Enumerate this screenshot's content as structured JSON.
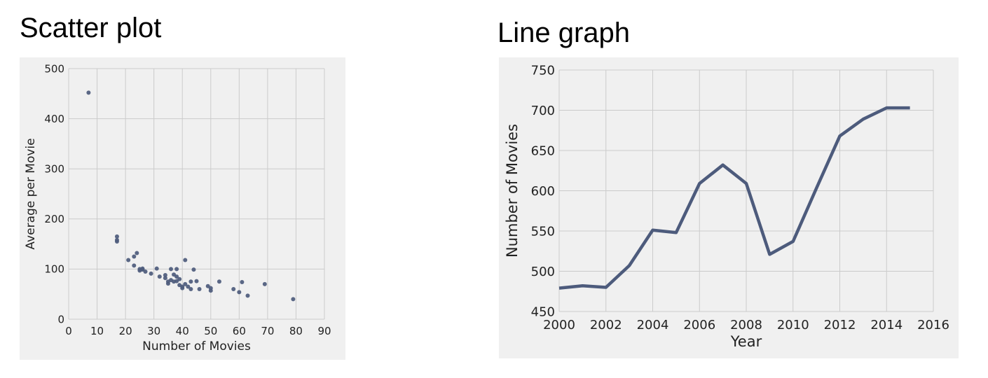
{
  "page": {
    "left_heading": "Scatter plot",
    "right_heading": "Line graph"
  },
  "colors": {
    "panel_bg": "#f0f0f0",
    "grid": "#cbcbcb",
    "series": "#4d5b7c"
  },
  "chart_data": [
    {
      "type": "scatter",
      "title": "",
      "xlabel": "Number of Movies",
      "ylabel": "Average per Movie",
      "xlim": [
        0,
        90
      ],
      "ylim": [
        0,
        500
      ],
      "xticks": [
        "0",
        "10",
        "20",
        "30",
        "40",
        "50",
        "60",
        "70",
        "80",
        "90"
      ],
      "yticks": [
        "0",
        "100",
        "200",
        "300",
        "400",
        "500"
      ],
      "grid": true,
      "points": [
        [
          7,
          452
        ],
        [
          17,
          165
        ],
        [
          17,
          158
        ],
        [
          17,
          155
        ],
        [
          21,
          118
        ],
        [
          23,
          107
        ],
        [
          23,
          125
        ],
        [
          24,
          132
        ],
        [
          25,
          100
        ],
        [
          25,
          97
        ],
        [
          26,
          101
        ],
        [
          26,
          99
        ],
        [
          27,
          95
        ],
        [
          29,
          91
        ],
        [
          31,
          101
        ],
        [
          32,
          85
        ],
        [
          34,
          88
        ],
        [
          34,
          82
        ],
        [
          35,
          75
        ],
        [
          35,
          71
        ],
        [
          36,
          100
        ],
        [
          36,
          78
        ],
        [
          37,
          75
        ],
        [
          37,
          89
        ],
        [
          38,
          100
        ],
        [
          38,
          76
        ],
        [
          38,
          85
        ],
        [
          39,
          80
        ],
        [
          39,
          68
        ],
        [
          40,
          65
        ],
        [
          40,
          62
        ],
        [
          41,
          118
        ],
        [
          41,
          70
        ],
        [
          42,
          65
        ],
        [
          43,
          60
        ],
        [
          43,
          75
        ],
        [
          44,
          99
        ],
        [
          45,
          76
        ],
        [
          46,
          60
        ],
        [
          49,
          66
        ],
        [
          50,
          62
        ],
        [
          50,
          57
        ],
        [
          53,
          75
        ],
        [
          58,
          60
        ],
        [
          60,
          54
        ],
        [
          61,
          74
        ],
        [
          63,
          47
        ],
        [
          69,
          70
        ],
        [
          79,
          40
        ]
      ]
    },
    {
      "type": "line",
      "title": "",
      "xlabel": "Year",
      "ylabel": "Number of Movies",
      "xlim": [
        2000,
        2016
      ],
      "ylim": [
        450,
        750
      ],
      "xticks": [
        "2000",
        "2002",
        "2004",
        "2006",
        "2008",
        "2010",
        "2012",
        "2014",
        "2016"
      ],
      "yticks": [
        "450",
        "500",
        "550",
        "600",
        "650",
        "700",
        "750"
      ],
      "grid": true,
      "x": [
        2000,
        2001,
        2002,
        2003,
        2004,
        2005,
        2006,
        2007,
        2008,
        2009,
        2010,
        2011,
        2012,
        2013,
        2014,
        2015
      ],
      "y": [
        479,
        482,
        480,
        507,
        551,
        548,
        609,
        632,
        609,
        521,
        537,
        603,
        668,
        689,
        703,
        703
      ]
    }
  ]
}
